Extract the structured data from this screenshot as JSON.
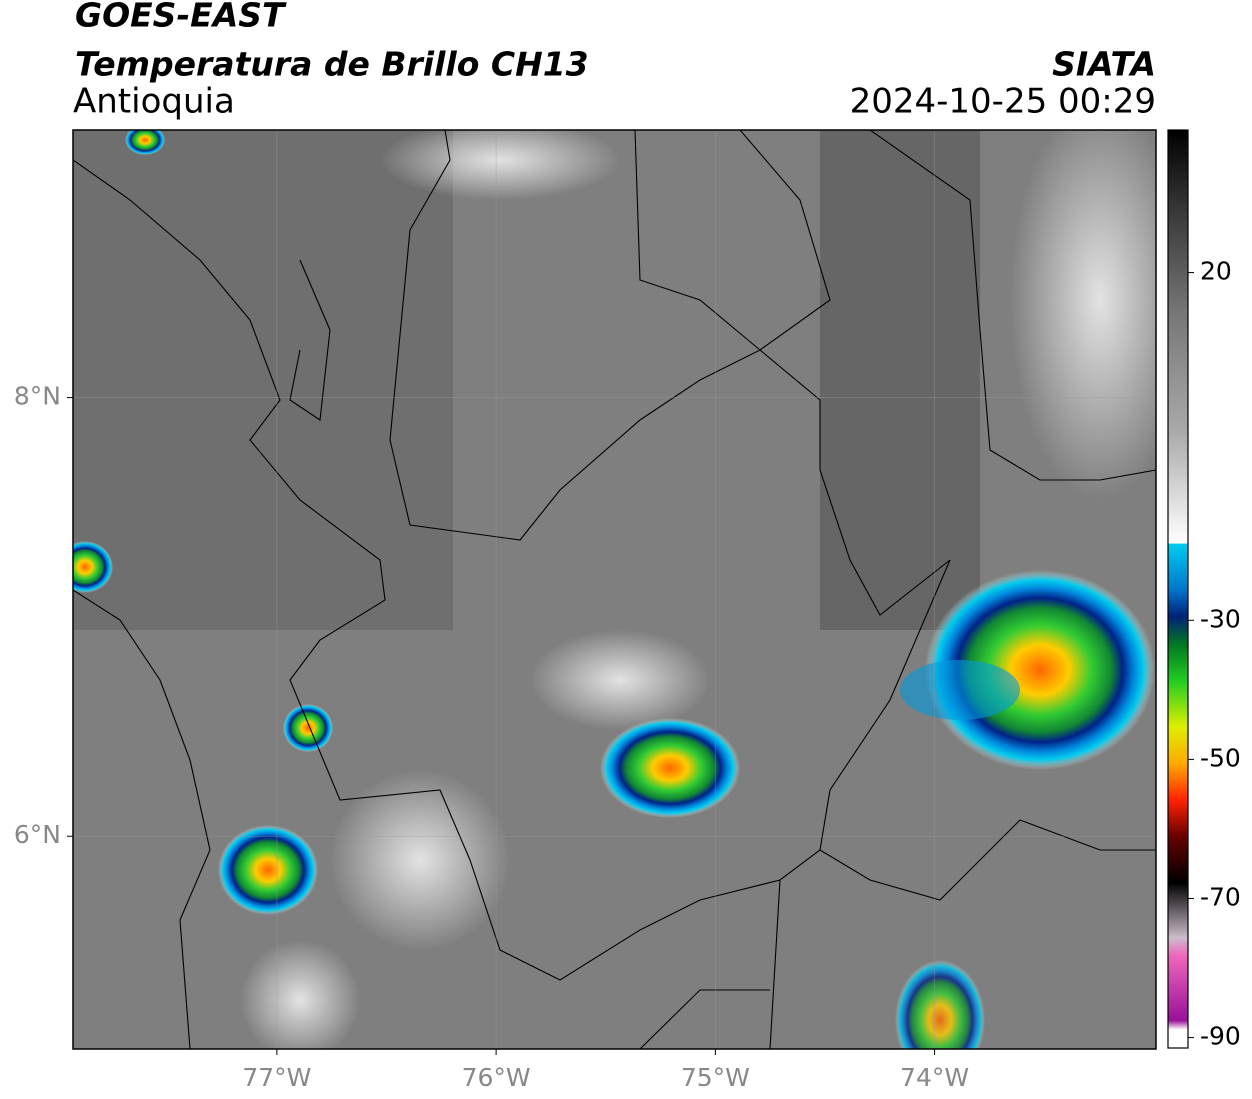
{
  "header": {
    "title": "GOES-EAST",
    "subtitle": "Temperatura de Brillo CH13",
    "region": "Antioquia",
    "source": "SIATA",
    "datetime": "2024-10-25 00:29"
  },
  "map": {
    "lon_range": [
      -77.93,
      -72.99
    ],
    "lat_range": [
      5.03,
      9.22
    ],
    "lon_ticks": [
      {
        "value": -77,
        "label": "77°W"
      },
      {
        "value": -76,
        "label": "76°W"
      },
      {
        "value": -75,
        "label": "75°W"
      },
      {
        "value": -74,
        "label": "74°W"
      }
    ],
    "lat_ticks": [
      {
        "value": 8,
        "label": "8°N"
      },
      {
        "value": 6,
        "label": "6°N"
      }
    ]
  },
  "colorbar": {
    "range": [
      -91.5,
      40.5
    ],
    "ticks": [
      20,
      -30,
      -50,
      -70,
      -90
    ]
  }
}
